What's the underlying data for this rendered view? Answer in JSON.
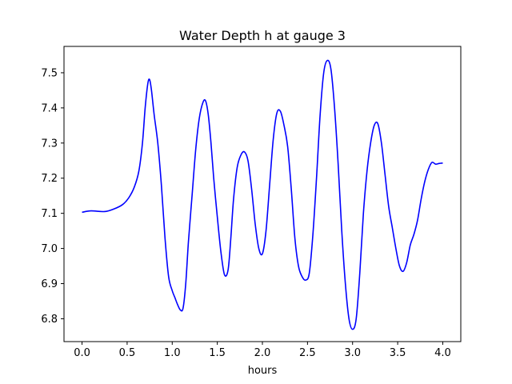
{
  "chart_data": {
    "type": "line",
    "title": "Water Depth h at gauge 3",
    "xlabel": "hours",
    "ylabel": "",
    "xlim": [
      -0.2,
      4.2
    ],
    "ylim": [
      6.735,
      7.575
    ],
    "xticks": [
      0.0,
      0.5,
      1.0,
      1.5,
      2.0,
      2.5,
      3.0,
      3.5,
      4.0
    ],
    "xtick_labels": [
      "0.0",
      "0.5",
      "1.0",
      "1.5",
      "2.0",
      "2.5",
      "3.0",
      "3.5",
      "4.0"
    ],
    "yticks": [
      6.8,
      6.9,
      7.0,
      7.1,
      7.2,
      7.3,
      7.4,
      7.5
    ],
    "ytick_labels": [
      "6.8",
      "6.9",
      "7.0",
      "7.1",
      "7.2",
      "7.3",
      "7.4",
      "7.5"
    ],
    "grid": false,
    "series": [
      {
        "name": "",
        "color": "#0000ff",
        "x": [
          0.0,
          0.1,
          0.25,
          0.35,
          0.45,
          0.52,
          0.58,
          0.63,
          0.67,
          0.7,
          0.73,
          0.75,
          0.77,
          0.8,
          0.84,
          0.88,
          0.92,
          0.96,
          1.0,
          1.03,
          1.06,
          1.09,
          1.12,
          1.15,
          1.18,
          1.22,
          1.26,
          1.3,
          1.34,
          1.37,
          1.4,
          1.43,
          1.46,
          1.5,
          1.54,
          1.58,
          1.62,
          1.65,
          1.68,
          1.72,
          1.76,
          1.8,
          1.84,
          1.88,
          1.92,
          1.96,
          2.0,
          2.04,
          2.08,
          2.12,
          2.16,
          2.2,
          2.24,
          2.28,
          2.32,
          2.36,
          2.4,
          2.44,
          2.48,
          2.52,
          2.56,
          2.6,
          2.64,
          2.68,
          2.72,
          2.76,
          2.8,
          2.84,
          2.88,
          2.92,
          2.96,
          3.0,
          3.04,
          3.08,
          3.12,
          3.16,
          3.2,
          3.24,
          3.28,
          3.32,
          3.36,
          3.4,
          3.44,
          3.48,
          3.52,
          3.56,
          3.6,
          3.64,
          3.68,
          3.72,
          3.76,
          3.8,
          3.84,
          3.88,
          3.92,
          3.96,
          4.0
        ],
        "y": [
          7.103,
          7.107,
          7.105,
          7.112,
          7.125,
          7.145,
          7.175,
          7.22,
          7.3,
          7.4,
          7.47,
          7.48,
          7.45,
          7.38,
          7.3,
          7.18,
          7.03,
          6.92,
          6.88,
          6.86,
          6.84,
          6.825,
          6.83,
          6.9,
          7.02,
          7.15,
          7.28,
          7.37,
          7.415,
          7.42,
          7.38,
          7.3,
          7.2,
          7.09,
          6.99,
          6.925,
          6.94,
          7.03,
          7.14,
          7.23,
          7.265,
          7.275,
          7.25,
          7.17,
          7.07,
          7.0,
          6.985,
          7.05,
          7.18,
          7.31,
          7.385,
          7.39,
          7.35,
          7.29,
          7.17,
          7.03,
          6.95,
          6.92,
          6.91,
          6.93,
          7.04,
          7.2,
          7.38,
          7.5,
          7.535,
          7.51,
          7.4,
          7.24,
          7.05,
          6.9,
          6.8,
          6.77,
          6.8,
          6.93,
          7.1,
          7.22,
          7.3,
          7.35,
          7.355,
          7.3,
          7.21,
          7.12,
          7.06,
          7.0,
          6.95,
          6.935,
          6.96,
          7.01,
          7.04,
          7.08,
          7.14,
          7.19,
          7.225,
          7.245,
          7.24,
          7.242,
          7.243
        ]
      }
    ]
  }
}
